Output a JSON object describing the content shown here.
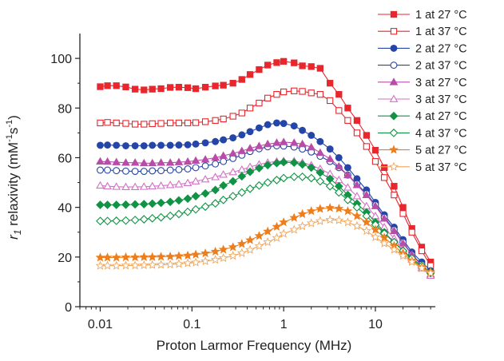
{
  "chart_data": {
    "type": "line",
    "xlabel": "Proton Larmor Frequency (MHz)",
    "ylabel_r": "r",
    "ylabel_sub": "1",
    "ylabel_rest": " relaxivity (mM",
    "ylabel_exp1": "-1",
    "ylabel_mid": "s",
    "ylabel_exp2": "-1",
    "ylabel_close": ")",
    "x_scale": "log",
    "xlim": [
      0.006,
      45
    ],
    "ylim": [
      0,
      110
    ],
    "x_ticks": [
      0.01,
      0.1,
      1,
      10
    ],
    "x_tick_labels": [
      "0.01",
      "0.1",
      "1",
      "10"
    ],
    "y_ticks": [
      0,
      20,
      40,
      60,
      80,
      100
    ],
    "y_tick_labels": [
      "0",
      "20",
      "40",
      "60",
      "80",
      "100"
    ],
    "grid": false,
    "legend_position": "top-right",
    "x": [
      0.01,
      0.012,
      0.015,
      0.019,
      0.024,
      0.03,
      0.037,
      0.046,
      0.058,
      0.072,
      0.09,
      0.11,
      0.14,
      0.18,
      0.22,
      0.28,
      0.35,
      0.43,
      0.54,
      0.67,
      0.84,
      1.0,
      1.3,
      1.6,
      2.0,
      2.5,
      3.2,
      4.0,
      5.0,
      6.3,
      8.0,
      10.0,
      12.5,
      16.0,
      20.0,
      25.0,
      32.0,
      40.0
    ],
    "series": [
      {
        "name": "1 at 27 °C",
        "color": "#e8262d",
        "marker": "square",
        "filled": true,
        "values": [
          88.6,
          89.0,
          89.0,
          88.5,
          87.6,
          87.3,
          87.6,
          87.8,
          88.3,
          88.4,
          88.2,
          87.8,
          88.4,
          88.9,
          89.2,
          90.0,
          91.5,
          93.5,
          95.5,
          97.3,
          98.3,
          98.8,
          98.2,
          97.0,
          96.7,
          96.0,
          90.0,
          85.5,
          80.0,
          75.0,
          69.0,
          63.0,
          56.0,
          48.5,
          40.0,
          31.5,
          24.0,
          18.0
        ]
      },
      {
        "name": "1 at 37 °C",
        "color": "#e8262d",
        "marker": "square",
        "filled": false,
        "values": [
          74.0,
          74.2,
          74.0,
          73.8,
          73.5,
          73.5,
          73.7,
          73.8,
          74.0,
          74.0,
          74.0,
          74.1,
          74.5,
          75.0,
          75.6,
          76.7,
          78.0,
          80.0,
          82.0,
          84.0,
          85.5,
          86.5,
          86.9,
          86.7,
          86.1,
          85.5,
          83.0,
          79.0,
          75.0,
          70.0,
          64.5,
          58.5,
          52.0,
          45.0,
          37.5,
          30.0,
          22.5,
          16.5
        ]
      },
      {
        "name": "2 at 27 °C",
        "color": "#2546a8",
        "marker": "circle",
        "filled": true,
        "values": [
          65.0,
          65.1,
          65.0,
          64.8,
          64.8,
          64.8,
          65.0,
          65.0,
          65.0,
          65.1,
          65.2,
          65.5,
          66.0,
          66.5,
          67.2,
          68.0,
          69.2,
          70.5,
          72.0,
          73.3,
          74.0,
          73.8,
          72.8,
          71.0,
          69.0,
          66.5,
          63.5,
          60.0,
          56.0,
          51.5,
          47.0,
          42.0,
          37.0,
          32.0,
          27.0,
          22.0,
          18.0,
          14.5
        ]
      },
      {
        "name": "2 at 37 °C",
        "color": "#2546a8",
        "marker": "circle",
        "filled": false,
        "values": [
          55.0,
          55.0,
          54.8,
          54.6,
          54.5,
          54.5,
          54.7,
          54.8,
          55.0,
          55.2,
          55.5,
          56.0,
          56.7,
          57.5,
          58.5,
          59.7,
          61.0,
          62.5,
          63.6,
          64.4,
          64.8,
          64.7,
          64.3,
          63.5,
          62.3,
          60.6,
          58.5,
          56.0,
          53.0,
          49.5,
          45.5,
          41.0,
          36.0,
          31.0,
          26.0,
          21.0,
          17.0,
          13.5
        ]
      },
      {
        "name": "3 at 27 °C",
        "color": "#b84ca8",
        "marker": "triangle",
        "filled": true,
        "values": [
          58.5,
          58.4,
          58.2,
          58.0,
          58.0,
          57.8,
          57.8,
          58.0,
          58.0,
          58.2,
          58.4,
          58.8,
          59.3,
          60.0,
          60.8,
          61.7,
          62.7,
          63.8,
          64.7,
          65.5,
          66.0,
          66.3,
          66.0,
          65.5,
          64.2,
          62.0,
          59.5,
          56.5,
          53.0,
          49.0,
          45.0,
          40.5,
          35.5,
          30.5,
          25.5,
          21.0,
          16.5,
          13.0
        ]
      },
      {
        "name": "3 at 37 °C",
        "color": "#d46fc8",
        "marker": "triangle",
        "filled": false,
        "values": [
          48.8,
          48.5,
          48.3,
          48.2,
          48.2,
          48.3,
          48.5,
          48.7,
          49.0,
          49.3,
          49.8,
          50.5,
          51.3,
          52.2,
          53.2,
          54.2,
          55.2,
          56.3,
          57.3,
          58.0,
          58.5,
          58.7,
          58.6,
          58.0,
          57.0,
          55.5,
          53.5,
          51.0,
          48.0,
          44.5,
          40.5,
          36.5,
          32.0,
          27.5,
          23.0,
          19.0,
          15.5,
          12.5
        ]
      },
      {
        "name": "4 at 27 °C",
        "color": "#119345",
        "marker": "diamond",
        "filled": true,
        "values": [
          41.0,
          41.0,
          41.0,
          41.1,
          41.2,
          41.3,
          41.5,
          41.8,
          42.2,
          42.8,
          43.5,
          44.5,
          45.6,
          47.0,
          48.8,
          50.5,
          52.5,
          54.3,
          55.8,
          57.0,
          57.8,
          58.2,
          58.0,
          57.3,
          56.0,
          54.0,
          51.5,
          48.5,
          45.0,
          41.5,
          38.0,
          34.0,
          30.0,
          26.0,
          22.5,
          19.0,
          16.0,
          13.5
        ]
      },
      {
        "name": "4 at 37 °C",
        "color": "#119345",
        "marker": "diamond",
        "filled": false,
        "values": [
          34.5,
          34.5,
          34.6,
          34.7,
          34.9,
          35.2,
          35.6,
          36.0,
          36.6,
          37.3,
          38.2,
          39.2,
          40.3,
          41.6,
          43.0,
          44.5,
          46.0,
          47.5,
          48.8,
          50.0,
          51.0,
          51.8,
          52.3,
          52.3,
          51.8,
          50.5,
          48.5,
          46.0,
          43.0,
          40.0,
          36.5,
          33.0,
          29.5,
          26.0,
          22.5,
          19.5,
          16.5,
          14.0
        ]
      },
      {
        "name": "5 at 27 °C",
        "color": "#ee7d1c",
        "marker": "star",
        "filled": true,
        "values": [
          19.8,
          19.8,
          19.8,
          19.9,
          19.9,
          20.0,
          20.0,
          20.1,
          20.2,
          20.4,
          20.6,
          21.0,
          21.5,
          22.2,
          23.0,
          24.0,
          25.3,
          26.8,
          28.5,
          30.3,
          32.2,
          34.0,
          35.8,
          37.3,
          38.5,
          39.4,
          39.8,
          39.5,
          38.5,
          36.5,
          34.0,
          31.0,
          27.8,
          24.5,
          21.5,
          18.5,
          16.0,
          14.0
        ]
      },
      {
        "name": "5 at 37 °C",
        "color": "#f0a55a",
        "marker": "star",
        "filled": false,
        "values": [
          16.5,
          16.5,
          16.5,
          16.6,
          16.6,
          16.7,
          16.8,
          16.9,
          17.0,
          17.2,
          17.5,
          17.8,
          18.3,
          18.9,
          19.6,
          20.5,
          21.6,
          22.9,
          24.4,
          26.0,
          27.7,
          29.4,
          31.0,
          32.4,
          33.6,
          34.5,
          35.0,
          34.8,
          34.0,
          32.5,
          30.5,
          28.0,
          25.5,
          23.0,
          20.5,
          18.0,
          15.5,
          13.5
        ]
      }
    ]
  }
}
